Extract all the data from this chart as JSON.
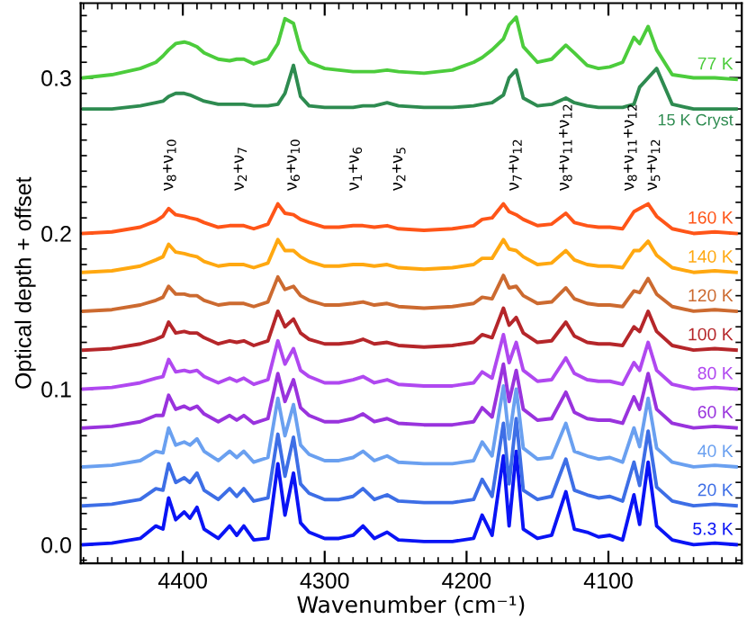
{
  "chart_data": {
    "type": "line",
    "xlabel": "Wavenumber (cm⁻¹)",
    "ylabel": "Optical depth + offset",
    "xlim": [
      4472,
      4006
    ],
    "ylim": [
      -0.012,
      0.348
    ],
    "xticks": [
      4400,
      4300,
      4200,
      4100
    ],
    "yticks": [
      {
        "value": 0.0,
        "label": "0.0"
      },
      0.1,
      0.2,
      0.3
    ],
    "x": [
      4470,
      4450,
      4430,
      4419,
      4414,
      4410,
      4405,
      4399,
      4395,
      4390,
      4385,
      4375,
      4367,
      4362,
      4357,
      4350,
      4340,
      4333,
      4328,
      4322,
      4317,
      4311,
      4300,
      4290,
      4280,
      4273,
      4265,
      4256,
      4248,
      4230,
      4210,
      4195,
      4189,
      4182,
      4174,
      4170,
      4165,
      4160,
      4150,
      4140,
      4130,
      4124,
      4115,
      4107,
      4099,
      4090,
      4082,
      4078,
      4072,
      4066,
      4055,
      4040,
      4025,
      4010
    ],
    "series": [
      {
        "name": "5.3 K",
        "color": "#0a14f5",
        "values": [
          0,
          0.001,
          0.004,
          0.012,
          0.01,
          0.03,
          0.016,
          0.021,
          0.017,
          0.024,
          0.01,
          0.004,
          0.012,
          0.006,
          0.012,
          0.003,
          0.004,
          0.052,
          0.019,
          0.046,
          0.014,
          0.008,
          0.004,
          0.004,
          0.006,
          0.012,
          0.004,
          0.008,
          0.003,
          0.002,
          0.002,
          0.004,
          0.019,
          0.006,
          0.057,
          0.012,
          0.06,
          0.01,
          0.004,
          0.006,
          0.034,
          0.01,
          0.008,
          0.005,
          0.006,
          0.003,
          0.032,
          0.013,
          0.053,
          0.012,
          0.003,
          0,
          0.001,
          0
        ]
      },
      {
        "name": "20 K",
        "color": "#3d6ee6",
        "values": [
          0.025,
          0.026,
          0.029,
          0.036,
          0.035,
          0.052,
          0.04,
          0.043,
          0.04,
          0.046,
          0.035,
          0.029,
          0.036,
          0.031,
          0.036,
          0.028,
          0.03,
          0.071,
          0.044,
          0.069,
          0.039,
          0.033,
          0.029,
          0.029,
          0.031,
          0.036,
          0.029,
          0.032,
          0.028,
          0.027,
          0.027,
          0.029,
          0.042,
          0.031,
          0.078,
          0.039,
          0.081,
          0.035,
          0.029,
          0.031,
          0.055,
          0.035,
          0.032,
          0.03,
          0.031,
          0.028,
          0.053,
          0.038,
          0.073,
          0.037,
          0.028,
          0.025,
          0.026,
          0.025
        ]
      },
      {
        "name": "40 K",
        "color": "#6aa0f0",
        "values": [
          0.05,
          0.051,
          0.054,
          0.06,
          0.059,
          0.075,
          0.064,
          0.066,
          0.064,
          0.068,
          0.06,
          0.054,
          0.06,
          0.056,
          0.06,
          0.053,
          0.056,
          0.094,
          0.07,
          0.09,
          0.064,
          0.058,
          0.054,
          0.054,
          0.056,
          0.06,
          0.054,
          0.057,
          0.053,
          0.052,
          0.052,
          0.054,
          0.066,
          0.057,
          0.102,
          0.068,
          0.1,
          0.062,
          0.055,
          0.056,
          0.078,
          0.06,
          0.057,
          0.055,
          0.056,
          0.053,
          0.075,
          0.063,
          0.094,
          0.062,
          0.053,
          0.05,
          0.051,
          0.05
        ]
      },
      {
        "name": "60 K",
        "color": "#9933dd",
        "values": [
          0.075,
          0.076,
          0.079,
          0.083,
          0.083,
          0.096,
          0.087,
          0.089,
          0.087,
          0.089,
          0.084,
          0.079,
          0.083,
          0.08,
          0.083,
          0.078,
          0.081,
          0.11,
          0.092,
          0.106,
          0.088,
          0.083,
          0.079,
          0.079,
          0.081,
          0.084,
          0.079,
          0.081,
          0.078,
          0.077,
          0.077,
          0.079,
          0.088,
          0.082,
          0.116,
          0.092,
          0.112,
          0.087,
          0.08,
          0.081,
          0.098,
          0.085,
          0.081,
          0.08,
          0.08,
          0.078,
          0.095,
          0.087,
          0.11,
          0.087,
          0.078,
          0.075,
          0.076,
          0.075
        ]
      },
      {
        "name": "80 K",
        "color": "#b048f0",
        "values": [
          0.1,
          0.101,
          0.104,
          0.107,
          0.108,
          0.119,
          0.111,
          0.112,
          0.111,
          0.112,
          0.108,
          0.104,
          0.107,
          0.105,
          0.107,
          0.103,
          0.106,
          0.131,
          0.116,
          0.126,
          0.112,
          0.108,
          0.104,
          0.104,
          0.106,
          0.108,
          0.104,
          0.106,
          0.103,
          0.102,
          0.102,
          0.104,
          0.111,
          0.107,
          0.135,
          0.117,
          0.13,
          0.112,
          0.105,
          0.106,
          0.12,
          0.11,
          0.106,
          0.105,
          0.105,
          0.103,
          0.117,
          0.112,
          0.13,
          0.112,
          0.103,
          0.1,
          0.101,
          0.1
        ]
      },
      {
        "name": "100 K",
        "color": "#b5262a",
        "values": [
          0.125,
          0.126,
          0.129,
          0.132,
          0.134,
          0.143,
          0.136,
          0.137,
          0.136,
          0.136,
          0.133,
          0.129,
          0.131,
          0.13,
          0.131,
          0.128,
          0.131,
          0.15,
          0.14,
          0.145,
          0.136,
          0.132,
          0.129,
          0.129,
          0.13,
          0.132,
          0.129,
          0.13,
          0.128,
          0.127,
          0.128,
          0.13,
          0.135,
          0.133,
          0.152,
          0.141,
          0.146,
          0.136,
          0.13,
          0.131,
          0.143,
          0.134,
          0.13,
          0.129,
          0.129,
          0.128,
          0.14,
          0.137,
          0.15,
          0.137,
          0.128,
          0.125,
          0.126,
          0.125
        ]
      },
      {
        "name": "120 K",
        "color": "#cc6a30",
        "values": [
          0.15,
          0.151,
          0.154,
          0.157,
          0.159,
          0.166,
          0.161,
          0.161,
          0.16,
          0.16,
          0.157,
          0.154,
          0.155,
          0.155,
          0.155,
          0.153,
          0.156,
          0.172,
          0.164,
          0.166,
          0.16,
          0.157,
          0.154,
          0.154,
          0.155,
          0.156,
          0.154,
          0.155,
          0.153,
          0.152,
          0.153,
          0.155,
          0.159,
          0.158,
          0.173,
          0.165,
          0.166,
          0.16,
          0.155,
          0.156,
          0.165,
          0.158,
          0.155,
          0.154,
          0.154,
          0.153,
          0.163,
          0.162,
          0.171,
          0.161,
          0.153,
          0.15,
          0.151,
          0.15
        ]
      },
      {
        "name": "140 K",
        "color": "#ffa810",
        "values": [
          0.175,
          0.176,
          0.179,
          0.183,
          0.185,
          0.193,
          0.188,
          0.187,
          0.186,
          0.185,
          0.182,
          0.179,
          0.18,
          0.18,
          0.18,
          0.178,
          0.181,
          0.196,
          0.189,
          0.189,
          0.185,
          0.182,
          0.179,
          0.179,
          0.18,
          0.18,
          0.179,
          0.18,
          0.178,
          0.177,
          0.178,
          0.18,
          0.184,
          0.184,
          0.196,
          0.19,
          0.189,
          0.185,
          0.18,
          0.181,
          0.189,
          0.183,
          0.18,
          0.179,
          0.179,
          0.178,
          0.189,
          0.189,
          0.195,
          0.186,
          0.178,
          0.175,
          0.176,
          0.175
        ]
      },
      {
        "name": "160 K",
        "color": "#ff5518",
        "values": [
          0.2,
          0.201,
          0.204,
          0.208,
          0.211,
          0.216,
          0.212,
          0.211,
          0.21,
          0.209,
          0.207,
          0.204,
          0.205,
          0.205,
          0.205,
          0.203,
          0.206,
          0.219,
          0.213,
          0.212,
          0.209,
          0.207,
          0.204,
          0.204,
          0.205,
          0.205,
          0.204,
          0.205,
          0.203,
          0.202,
          0.203,
          0.205,
          0.209,
          0.21,
          0.219,
          0.214,
          0.212,
          0.209,
          0.205,
          0.206,
          0.213,
          0.207,
          0.205,
          0.204,
          0.204,
          0.203,
          0.214,
          0.216,
          0.219,
          0.211,
          0.203,
          0.2,
          0.201,
          0.2
        ]
      },
      {
        "name": "15 K Cryst",
        "color": "#2e8b50",
        "values": [
          0.28,
          0.28,
          0.282,
          0.284,
          0.285,
          0.288,
          0.29,
          0.29,
          0.289,
          0.287,
          0.285,
          0.283,
          0.283,
          0.283,
          0.283,
          0.282,
          0.282,
          0.283,
          0.29,
          0.308,
          0.288,
          0.282,
          0.281,
          0.281,
          0.281,
          0.282,
          0.282,
          0.284,
          0.282,
          0.281,
          0.281,
          0.282,
          0.283,
          0.284,
          0.289,
          0.3,
          0.305,
          0.287,
          0.282,
          0.283,
          0.287,
          0.284,
          0.282,
          0.281,
          0.281,
          0.281,
          0.283,
          0.294,
          0.3,
          0.306,
          0.283,
          0.28,
          0.28,
          0.28
        ]
      },
      {
        "name": "77 K",
        "color": "#4ccc3c",
        "values": [
          0.3,
          0.302,
          0.306,
          0.31,
          0.314,
          0.318,
          0.322,
          0.323,
          0.322,
          0.32,
          0.316,
          0.312,
          0.311,
          0.312,
          0.312,
          0.309,
          0.312,
          0.322,
          0.338,
          0.335,
          0.318,
          0.31,
          0.306,
          0.305,
          0.304,
          0.304,
          0.304,
          0.305,
          0.304,
          0.303,
          0.305,
          0.31,
          0.313,
          0.318,
          0.325,
          0.334,
          0.339,
          0.32,
          0.31,
          0.312,
          0.321,
          0.316,
          0.308,
          0.306,
          0.307,
          0.31,
          0.326,
          0.322,
          0.333,
          0.318,
          0.302,
          0.3,
          0.3,
          0.299
        ]
      }
    ],
    "annotations": [
      "ν$_{8}$+ν$_{10}$",
      "ν$_{2}$+ν$_{7}$",
      "ν$_{6}$+ν$_{10}$",
      "ν$_{1}$+ν$_{6}$",
      "ν$_{2}$+ν$_{5}$",
      "ν$_{7}$+ν$_{12}$",
      "ν$_{8}$+ν$_{11}$+ν$_{12}$",
      "ν$_{8}$+ν$_{11}$+ν$_{12}$",
      "ν$_{5}$+ν$_{12}$"
    ]
  }
}
